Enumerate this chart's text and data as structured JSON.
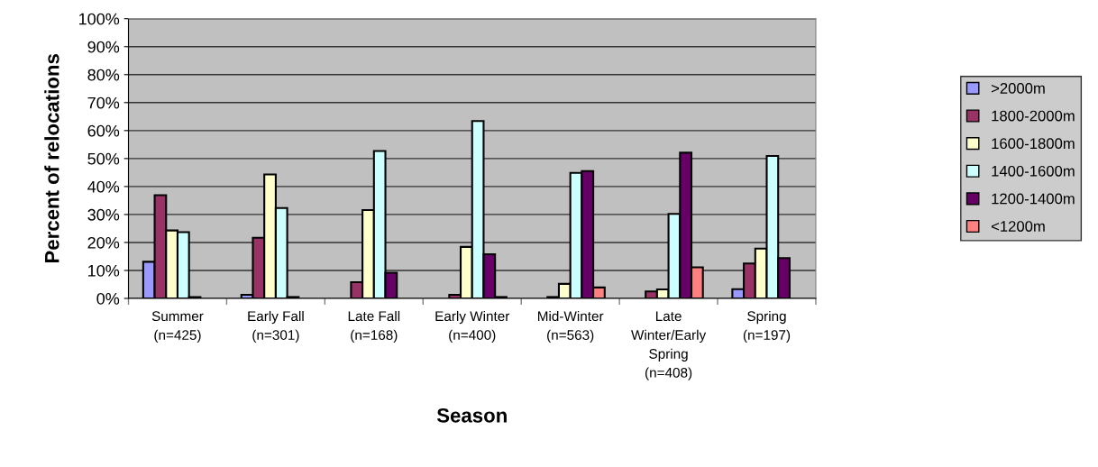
{
  "chart_data": {
    "type": "bar",
    "xlabel": "Season",
    "ylabel": "Percent of relocations",
    "categories": [
      "Summer\n(n=425)",
      "Early Fall\n(n=301)",
      "Late Fall\n(n=168)",
      "Early Winter\n(n=400)",
      "Mid-Winter\n(n=563)",
      "Late\nWinter/Early\nSpring\n(n=408)",
      "Spring\n(n=197)"
    ],
    "series": [
      {
        "name": ">2000m",
        "color": "#9999ff",
        "values": [
          13.1,
          1.3,
          null,
          null,
          null,
          null,
          3.3
        ]
      },
      {
        "name": "1800-2000m",
        "color": "#993366",
        "values": [
          36.9,
          21.7,
          5.8,
          1.3,
          0.5,
          2.5,
          12.5
        ]
      },
      {
        "name": "1600-1800m",
        "color": "#ffffcc",
        "values": [
          24.3,
          44.3,
          31.6,
          18.4,
          5.2,
          3.2,
          17.8
        ]
      },
      {
        "name": "1400-1600m",
        "color": "#ccffff",
        "values": [
          23.7,
          32.3,
          52.7,
          63.4,
          44.9,
          30.2,
          50.9
        ]
      },
      {
        "name": "1200-1400m",
        "color": "#660066",
        "values": [
          0.5,
          0.5,
          9.2,
          15.8,
          45.5,
          52.1,
          14.4
        ]
      },
      {
        "name": "<1200m",
        "color": "#ff8080",
        "values": [
          null,
          null,
          null,
          0.5,
          3.9,
          11.1,
          null
        ]
      }
    ],
    "ylim": [
      0,
      100
    ],
    "yticks": [
      {
        "value": 0,
        "label": "0%"
      },
      {
        "value": 10,
        "label": "10%"
      },
      {
        "value": 20,
        "label": "20%"
      },
      {
        "value": 30,
        "label": "30%"
      },
      {
        "value": 40,
        "label": "40%"
      },
      {
        "value": 50,
        "label": "50%"
      },
      {
        "value": 60,
        "label": "60%"
      },
      {
        "value": 70,
        "label": "70%"
      },
      {
        "value": 80,
        "label": "80%"
      },
      {
        "value": 90,
        "label": "90%"
      },
      {
        "value": 100,
        "label": "100%"
      }
    ],
    "grid": "y",
    "legend": "right"
  }
}
